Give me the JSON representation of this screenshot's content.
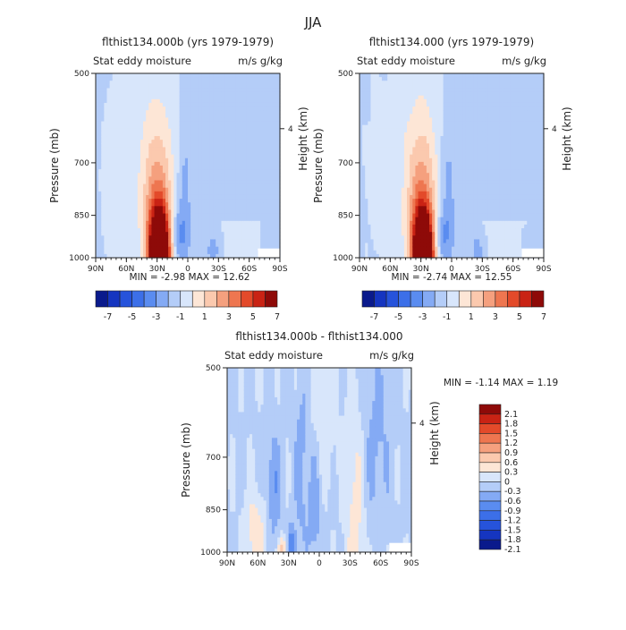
{
  "page": {
    "title": "JJA"
  },
  "chart_data": [
    {
      "type": "heatmap",
      "title": "flthist134.000b (yrs 1979-1979)",
      "subtitle_left": "Stat eddy moisture",
      "units": "m/s g/kg",
      "ylabel": "Pressure (mb)",
      "right_label": "Height (km)",
      "x_ticks": [
        "90N",
        "60N",
        "30N",
        "0",
        "30S",
        "60S",
        "90S"
      ],
      "y_ticks": [
        "500",
        "700",
        "850",
        "1000"
      ],
      "y_right_ticks": [
        "4"
      ],
      "stats": "MIN = -2.98   MAX = 12.62",
      "min": -2.98,
      "max": 12.62,
      "colorbar_labels": [
        "-7",
        "-5",
        "-3",
        "-1",
        "1",
        "3",
        "5",
        "7"
      ],
      "levels": [
        -7,
        -6,
        -5,
        -4,
        -3,
        -2,
        -1,
        0,
        1,
        2,
        3,
        4,
        5,
        6,
        7
      ]
    },
    {
      "type": "heatmap",
      "title": "flthist134.000 (yrs 1979-1979)",
      "subtitle_left": "Stat eddy moisture",
      "units": "m/s g/kg",
      "ylabel": "Pressure (mb)",
      "right_label": "Height (km)",
      "x_ticks": [
        "90N",
        "60N",
        "30N",
        "0",
        "30S",
        "60S",
        "90S"
      ],
      "y_ticks": [
        "500",
        "700",
        "850",
        "1000"
      ],
      "y_right_ticks": [
        "4"
      ],
      "stats": "MIN = -2.74   MAX = 12.55",
      "min": -2.74,
      "max": 12.55,
      "colorbar_labels": [
        "-7",
        "-5",
        "-3",
        "-1",
        "1",
        "3",
        "5",
        "7"
      ],
      "levels": [
        -7,
        -6,
        -5,
        -4,
        -3,
        -2,
        -1,
        0,
        1,
        2,
        3,
        4,
        5,
        6,
        7
      ]
    },
    {
      "type": "heatmap",
      "title": "flthist134.000b - flthist134.000",
      "subtitle_left": "Stat eddy moisture",
      "units": "m/s g/kg",
      "ylabel": "Pressure (mb)",
      "right_label": "Height (km)",
      "x_ticks": [
        "90N",
        "60N",
        "30N",
        "0",
        "30S",
        "60S",
        "90S"
      ],
      "y_ticks": [
        "500",
        "700",
        "850",
        "1000"
      ],
      "y_right_ticks": [
        "4"
      ],
      "stats": "MIN =  -1.14   MAX =   1.19",
      "min": -1.14,
      "max": 1.19,
      "colorbar_labels": [
        "2.1",
        "1.8",
        "1.5",
        "1.2",
        "0.9",
        "0.6",
        "0.3",
        "0",
        "-0.3",
        "-0.6",
        "-0.9",
        "-1.2",
        "-1.5",
        "-1.8",
        "-2.1"
      ],
      "levels": [
        -2.1,
        -1.8,
        -1.5,
        -1.2,
        -0.9,
        -0.6,
        -0.3,
        0,
        0.3,
        0.6,
        0.9,
        1.2,
        1.5,
        1.8,
        2.1
      ]
    }
  ],
  "palette": {
    "colors": [
      "#0a1a8c",
      "#1535c0",
      "#2653db",
      "#3c6fe8",
      "#5a8cf0",
      "#84aaf4",
      "#b4cdf8",
      "#d8e6fb",
      "#fde6d6",
      "#fbc9ae",
      "#f5a07e",
      "#ee7650",
      "#e34a2a",
      "#c92314",
      "#8e0a08"
    ]
  }
}
